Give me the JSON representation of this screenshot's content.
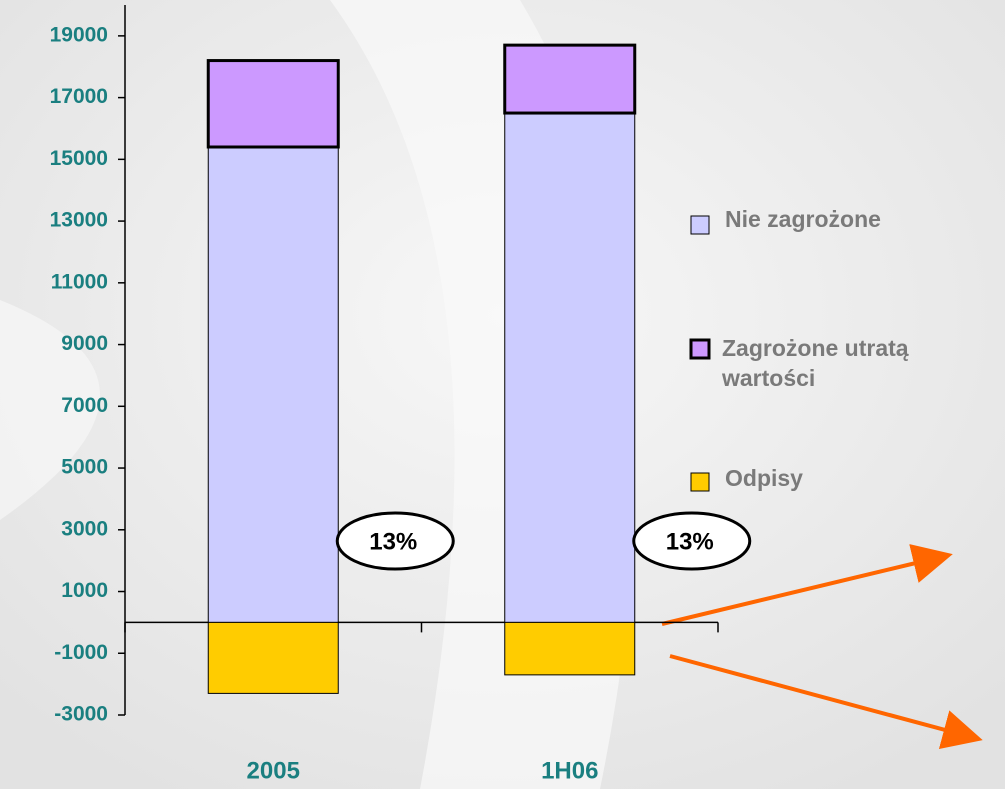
{
  "chart_data": {
    "type": "bar",
    "stacked": true,
    "categories": [
      "2005",
      "1H06"
    ],
    "series": [
      {
        "name": "Nie zagrożone",
        "color": "#ccccff",
        "values": [
          15400,
          16500
        ]
      },
      {
        "name": "Zagrożone utratą wartości",
        "color": "#cc99ff",
        "values": [
          2800,
          2200
        ]
      },
      {
        "name": "Odpisy",
        "color": "#ffcc00",
        "values": [
          -2300,
          -1700
        ]
      }
    ],
    "annotations": [
      "13%",
      "13%"
    ],
    "ylim": [
      -3000,
      20000
    ],
    "yticks": [
      -3000,
      -1000,
      1000,
      3000,
      5000,
      7000,
      9000,
      11000,
      13000,
      15000,
      17000,
      19000
    ],
    "grid": false,
    "legend": "right"
  }
}
